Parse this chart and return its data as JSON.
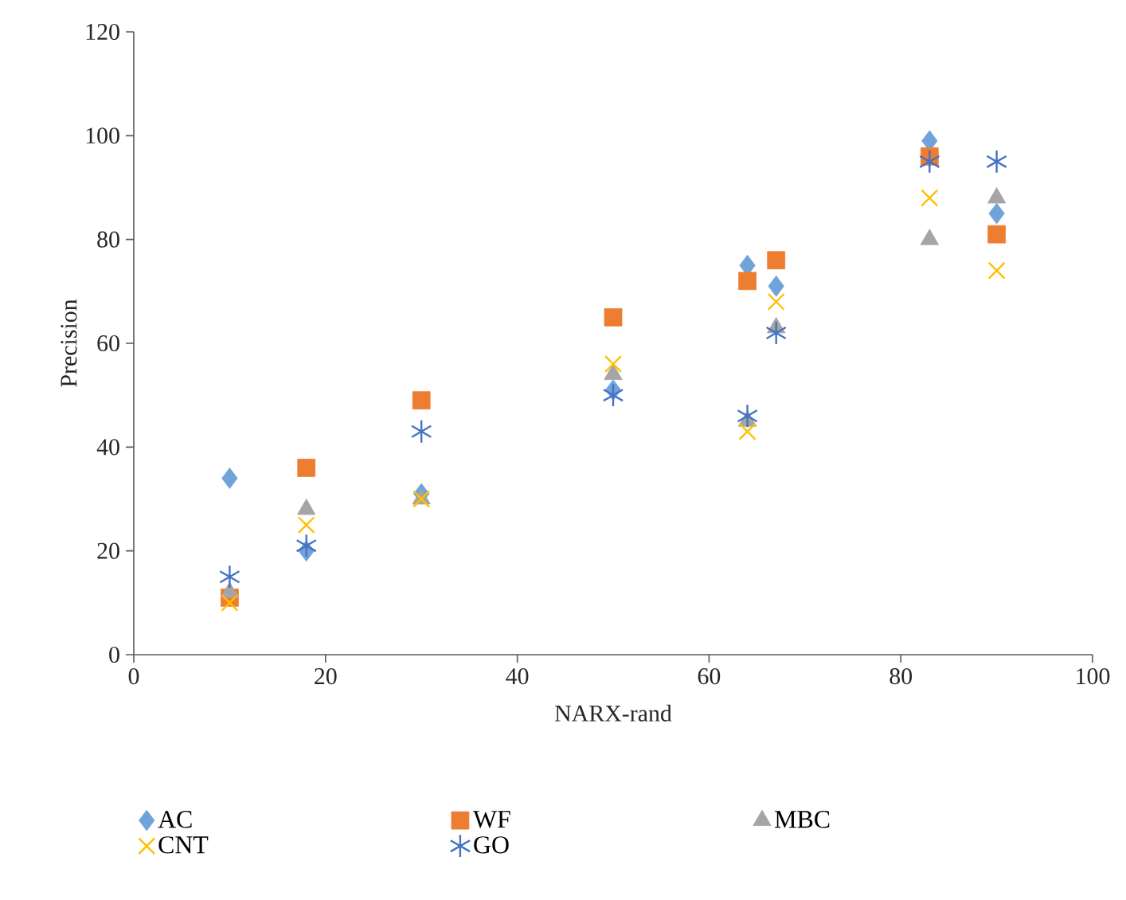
{
  "chart_data": {
    "type": "scatter",
    "xlabel": "NARX-rand",
    "ylabel": "Precision",
    "xlim": [
      0,
      100
    ],
    "xticks": [
      0,
      20,
      40,
      60,
      80,
      100
    ],
    "ylim": [
      0,
      120
    ],
    "yticks": [
      0,
      20,
      40,
      60,
      80,
      100,
      120
    ],
    "grid": false,
    "legend": "bottom",
    "series": [
      {
        "name": "AC",
        "color": "#6fa4da",
        "marker": "diamond",
        "x": [
          10,
          18,
          30,
          50,
          64,
          67,
          83,
          90
        ],
        "values": [
          34,
          20,
          31,
          51,
          75,
          71,
          99,
          85
        ]
      },
      {
        "name": "WF",
        "color": "#ed7d31",
        "marker": "square",
        "x": [
          10,
          18,
          30,
          50,
          64,
          67,
          83,
          90
        ],
        "values": [
          11,
          36,
          49,
          65,
          72,
          76,
          96,
          81
        ]
      },
      {
        "name": "MBC",
        "color": "#a5a5a5",
        "marker": "triangle",
        "x": [
          10,
          18,
          30,
          50,
          64,
          67,
          83,
          90
        ],
        "values": [
          12,
          28,
          30,
          54,
          45,
          63,
          80,
          88
        ]
      },
      {
        "name": "CNT",
        "color": "#ffc000",
        "marker": "cross",
        "x": [
          10,
          18,
          30,
          50,
          64,
          67,
          83,
          90
        ],
        "values": [
          10,
          25,
          30,
          56,
          43,
          68,
          88,
          74
        ]
      },
      {
        "name": "GO",
        "color": "#4472c4",
        "marker": "cross",
        "x": [
          10,
          18,
          30,
          50,
          64,
          67,
          83,
          90
        ],
        "values": [
          15,
          21,
          43,
          50,
          46,
          62,
          95,
          95
        ]
      }
    ]
  }
}
